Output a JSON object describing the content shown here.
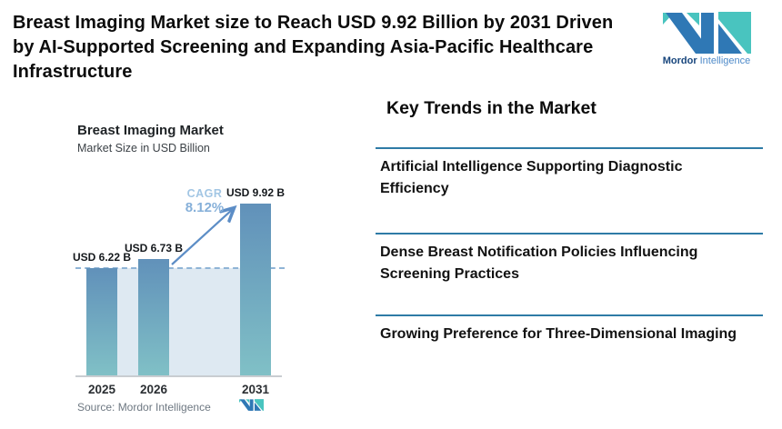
{
  "header": {
    "title_lines": [
      "Breast Imaging Market size to Reach USD 9.92 Billion by 2031 Driven",
      "by AI-Supported Screening and Expanding Asia-Pacific Healthcare",
      "Infrastructure"
    ],
    "logo": {
      "brand_bold": "Mordor",
      "brand_light": "Intelligence"
    }
  },
  "colors": {
    "logo_blue": "#2F78B5",
    "logo_teal": "#49C4BF",
    "divider_blue": "#2E7BA6",
    "bar_top": "#6191BA",
    "bar_bottom": "#80C0C6",
    "region_fill": "#DEE9F2",
    "dashed_line": "#8FB4D6",
    "arrow": "#5C8DC6",
    "cagr_label": "#A2C6E4",
    "cagr_value": "#86B0D9"
  },
  "chart": {
    "source": "Source: Mordor Intelligence",
    "cagr_label": "CAGR",
    "cagr_value": "8.12%"
  },
  "chart_data": {
    "type": "bar",
    "title": "Breast Imaging Market",
    "subtitle": "Market Size in USD Billion",
    "categories": [
      "2025",
      "2026",
      "2031"
    ],
    "values": [
      6.22,
      6.73,
      9.92
    ],
    "value_labels": [
      "USD 6.22 B",
      "USD 6.73 B",
      "USD 9.92 B"
    ],
    "ylabel": "Market Size in USD Billion",
    "ylim": [
      0,
      10.5
    ],
    "grid": false,
    "legend": "none",
    "annotations": {
      "cagr_label": "CAGR",
      "cagr_value": "8.12%",
      "dashed_baseline_value": 6.22,
      "arrow": "from top of 2026 bar to top of 2031 bar"
    }
  },
  "trends": {
    "heading": "Key Trends in the Market",
    "items": [
      {
        "lines": [
          "Artificial Intelligence Supporting Diagnostic",
          "Efficiency"
        ]
      },
      {
        "lines": [
          "Dense Breast Notification Policies Influencing",
          "Screening Practices"
        ]
      },
      {
        "lines": [
          "Growing Preference for Three-Dimensional Imaging",
          ""
        ]
      }
    ]
  }
}
